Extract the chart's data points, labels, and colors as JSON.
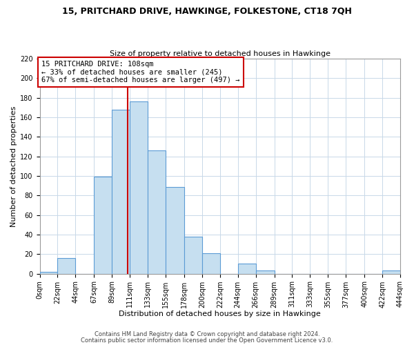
{
  "title": "15, PRITCHARD DRIVE, HAWKINGE, FOLKESTONE, CT18 7QH",
  "subtitle": "Size of property relative to detached houses in Hawkinge",
  "xlabel": "Distribution of detached houses by size in Hawkinge",
  "ylabel": "Number of detached properties",
  "footer1": "Contains HM Land Registry data © Crown copyright and database right 2024.",
  "footer2": "Contains public sector information licensed under the Open Government Licence v3.0.",
  "bar_color": "#c6dff0",
  "bar_edge_color": "#5b9bd5",
  "property_line_color": "#cc0000",
  "annotation_box_edge": "#cc0000",
  "annotation_text1": "15 PRITCHARD DRIVE: 108sqm",
  "annotation_text2": "← 33% of detached houses are smaller (245)",
  "annotation_text3": "67% of semi-detached houses are larger (497) →",
  "property_value": 108,
  "bin_edges": [
    0,
    22,
    44,
    67,
    89,
    111,
    133,
    155,
    178,
    200,
    222,
    244,
    266,
    289,
    311,
    333,
    355,
    377,
    400,
    422,
    444
  ],
  "bin_labels": [
    "0sqm",
    "22sqm",
    "44sqm",
    "67sqm",
    "89sqm",
    "111sqm",
    "133sqm",
    "155sqm",
    "178sqm",
    "200sqm",
    "222sqm",
    "244sqm",
    "266sqm",
    "289sqm",
    "311sqm",
    "333sqm",
    "355sqm",
    "377sqm",
    "400sqm",
    "422sqm",
    "444sqm"
  ],
  "counts": [
    2,
    16,
    0,
    99,
    168,
    176,
    126,
    89,
    38,
    21,
    0,
    10,
    3,
    0,
    0,
    0,
    0,
    0,
    0,
    3
  ],
  "ylim": [
    0,
    220
  ],
  "yticks": [
    0,
    20,
    40,
    60,
    80,
    100,
    120,
    140,
    160,
    180,
    200,
    220
  ],
  "background_color": "#ffffff",
  "grid_color": "#c8d8e8",
  "title_fontsize": 9,
  "subtitle_fontsize": 8,
  "xlabel_fontsize": 8,
  "ylabel_fontsize": 8,
  "tick_fontsize": 7,
  "annotation_fontsize": 7.5,
  "footer_fontsize": 6
}
